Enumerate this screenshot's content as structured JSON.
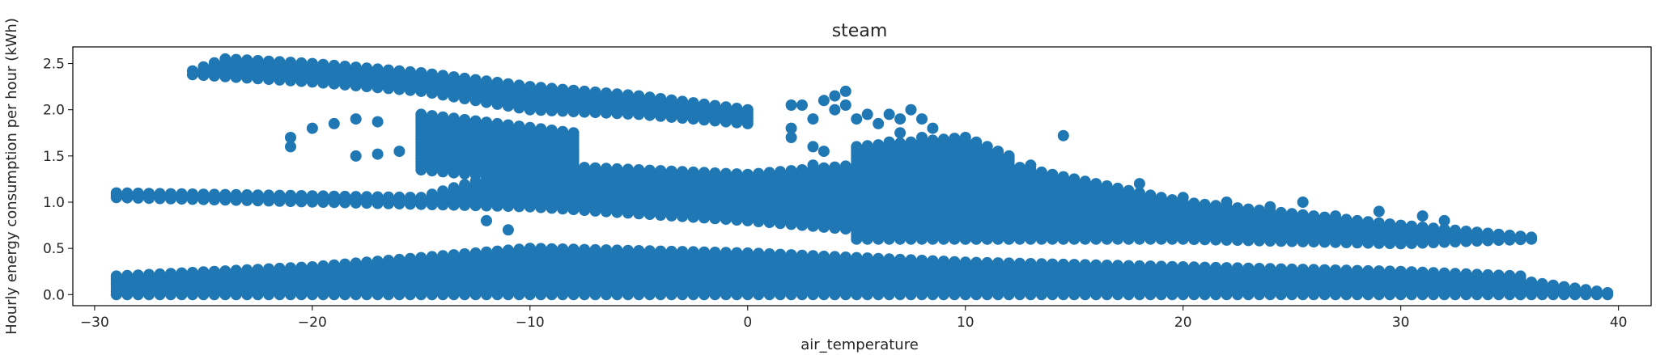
{
  "chart_data": {
    "type": "scatter",
    "title": "steam",
    "xlabel": "air_temperature",
    "ylabel": "Hourly energy consumption per hour (kWh)",
    "xlim": [
      -31,
      41.5
    ],
    "ylim": [
      -0.12,
      2.68
    ],
    "xticks": [
      -30,
      -20,
      -10,
      0,
      10,
      20,
      30,
      40
    ],
    "yticks": [
      0.0,
      0.5,
      1.0,
      1.5,
      2.0,
      2.5
    ],
    "xtick_labels": [
      "−30",
      "−20",
      "−10",
      "0",
      "10",
      "20",
      "30",
      "40"
    ],
    "ytick_labels": [
      "0.0",
      "0.5",
      "1.0",
      "1.5",
      "2.0",
      "2.5"
    ],
    "grid": false,
    "color": "#1f77b4",
    "series": [
      {
        "bands": [
          {
            "kind": "column",
            "x_from": -29,
            "x_to": 35.5,
            "x_step": 0.5,
            "y_low": [
              [
                -29,
                0
              ],
              [
                35.5,
                0
              ]
            ],
            "y_high": [
              [
                -29,
                0.2
              ],
              [
                -20,
                0.3
              ],
              [
                -10,
                0.5
              ],
              [
                0,
                0.45
              ],
              [
                10,
                0.35
              ],
              [
                20,
                0.3
              ],
              [
                30,
                0.25
              ],
              [
                35.5,
                0.2
              ]
            ]
          },
          {
            "kind": "column",
            "x_from": 35.5,
            "x_to": 39.5,
            "x_step": 0.5,
            "y_low": [
              [
                35.5,
                0
              ],
              [
                39.5,
                0
              ]
            ],
            "y_high": [
              [
                35.5,
                0.15
              ],
              [
                39.5,
                0.02
              ]
            ]
          },
          {
            "kind": "column",
            "x_from": -29,
            "x_to": 36,
            "x_step": 0.5,
            "y_low": [
              [
                -29,
                1.05
              ],
              [
                -10,
                0.95
              ],
              [
                0,
                0.8
              ],
              [
                10,
                0.6
              ],
              [
                20,
                0.6
              ],
              [
                30,
                0.55
              ],
              [
                36,
                0.6
              ]
            ],
            "y_high": [
              [
                -29,
                1.1
              ],
              [
                -15,
                1.05
              ],
              [
                -10,
                1.4
              ],
              [
                0,
                1.3
              ],
              [
                10,
                1.5
              ],
              [
                20,
                1.0
              ],
              [
                30,
                0.75
              ],
              [
                36,
                0.62
              ]
            ]
          },
          {
            "kind": "column",
            "x_from": -25.5,
            "x_to": 0,
            "x_step": 0.5,
            "y_low": [
              [
                -25.5,
                2.38
              ],
              [
                -20,
                2.3
              ],
              [
                -15,
                2.2
              ],
              [
                -10,
                2.0
              ],
              [
                -5,
                1.95
              ],
              [
                0,
                1.85
              ]
            ],
            "y_high": [
              [
                -25.5,
                2.42
              ],
              [
                -24,
                2.55
              ],
              [
                -20,
                2.5
              ],
              [
                -15,
                2.4
              ],
              [
                -10,
                2.25
              ],
              [
                -5,
                2.15
              ],
              [
                0,
                2.0
              ]
            ]
          },
          {
            "kind": "column",
            "x_from": -15,
            "x_to": -8,
            "x_step": 0.5,
            "y_low": [
              [
                -15,
                1.35
              ],
              [
                -8,
                1.2
              ]
            ],
            "y_high": [
              [
                -15,
                1.95
              ],
              [
                -8,
                1.75
              ]
            ]
          },
          {
            "kind": "column",
            "x_from": 5,
            "x_to": 12,
            "x_step": 0.5,
            "y_low": [
              [
                5,
                0.6
              ],
              [
                12,
                0.6
              ]
            ],
            "y_high": [
              [
                5,
                1.6
              ],
              [
                10,
                1.7
              ],
              [
                12,
                1.5
              ]
            ]
          }
        ],
        "points": [
          [
            -21,
            1.6
          ],
          [
            -21,
            1.7
          ],
          [
            -20,
            1.8
          ],
          [
            -19,
            1.85
          ],
          [
            -18,
            1.9
          ],
          [
            -17,
            1.87
          ],
          [
            -18,
            1.5
          ],
          [
            -17,
            1.52
          ],
          [
            -16,
            1.55
          ],
          [
            -12,
            1.05
          ],
          [
            -11,
            1.0
          ],
          [
            -12,
            0.8
          ],
          [
            -11,
            0.7
          ],
          [
            2,
            2.05
          ],
          [
            2.5,
            2.05
          ],
          [
            2,
            1.8
          ],
          [
            2,
            1.7
          ],
          [
            3,
            1.6
          ],
          [
            3,
            1.4
          ],
          [
            3.5,
            1.55
          ],
          [
            4,
            2.15
          ],
          [
            4.5,
            2.2
          ],
          [
            3.5,
            2.1
          ],
          [
            4,
            2.0
          ],
          [
            4.5,
            2.05
          ],
          [
            3,
            1.9
          ],
          [
            5,
            1.9
          ],
          [
            5.5,
            1.95
          ],
          [
            6,
            1.85
          ],
          [
            6.5,
            1.95
          ],
          [
            7,
            1.9
          ],
          [
            7.5,
            2.0
          ],
          [
            8,
            1.9
          ],
          [
            8.5,
            1.8
          ],
          [
            6,
            1.6
          ],
          [
            6.5,
            1.65
          ],
          [
            7,
            1.75
          ],
          [
            8,
            1.7
          ],
          [
            14.5,
            1.72
          ],
          [
            13,
            1.4
          ],
          [
            12,
            1.5
          ],
          [
            11,
            1.6
          ],
          [
            25.5,
            1.0
          ],
          [
            27,
            0.85
          ],
          [
            29,
            0.9
          ],
          [
            31,
            0.85
          ],
          [
            32,
            0.8
          ],
          [
            17,
            1.1
          ],
          [
            18,
            1.2
          ],
          [
            20,
            1.05
          ],
          [
            22,
            1.0
          ],
          [
            24,
            0.95
          ]
        ]
      }
    ]
  }
}
